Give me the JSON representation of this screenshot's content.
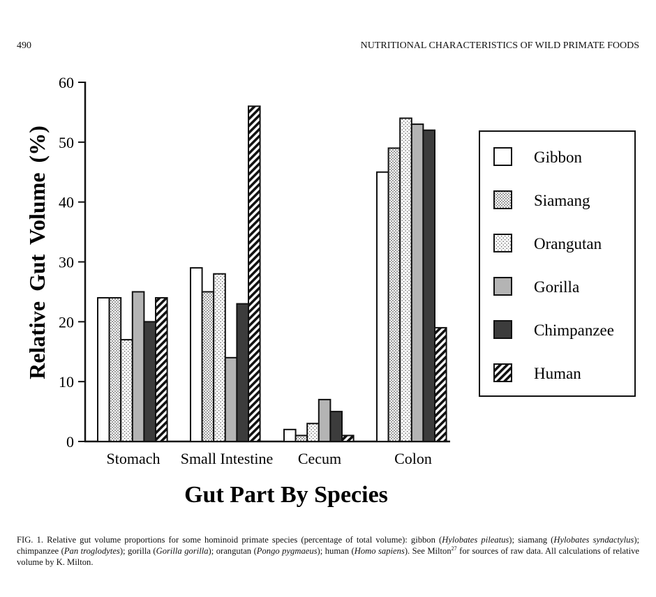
{
  "page": {
    "page_number": "490",
    "running_head": "NUTRITIONAL CHARACTERISTICS OF WILD PRIMATE FOODS"
  },
  "caption": {
    "parts": [
      {
        "text": "FIG. 1. Relative gut volume proportions for some hominoid primate species (percentage of total volume): gibbon (",
        "style": "normal"
      },
      {
        "text": "Hylobates pileatus",
        "style": "italic"
      },
      {
        "text": "); siamang (",
        "style": "normal"
      },
      {
        "text": "Hylobates syndactylus",
        "style": "italic"
      },
      {
        "text": "); chimpanzee (",
        "style": "normal"
      },
      {
        "text": "Pan troglodytes",
        "style": "italic"
      },
      {
        "text": "); gorilla (",
        "style": "normal"
      },
      {
        "text": "Gorilla gorilla",
        "style": "italic"
      },
      {
        "text": "); orangutan (",
        "style": "normal"
      },
      {
        "text": "Pongo pygmaeus",
        "style": "italic"
      },
      {
        "text": "); human (",
        "style": "normal"
      },
      {
        "text": "Homo sapiens",
        "style": "italic"
      },
      {
        "text": "). See Milton",
        "style": "normal"
      },
      {
        "text": "27",
        "style": "sup"
      },
      {
        "text": " for sources of raw data. All calculations of relative volume by K. Milton.",
        "style": "normal"
      }
    ]
  },
  "chart_data": {
    "type": "bar",
    "title": "",
    "xlabel": "Gut Part By Species",
    "ylabel": "Relative Gut Volume (%)",
    "ylim": [
      0,
      60
    ],
    "yticks": [
      0,
      10,
      20,
      30,
      40,
      50,
      60
    ],
    "grid": false,
    "legend_position": "right",
    "categories": [
      "Stomach",
      "Small Intestine",
      "Cecum",
      "Colon"
    ],
    "series": [
      {
        "name": "Gibbon",
        "pattern": "white",
        "values": [
          24,
          29,
          2,
          45
        ]
      },
      {
        "name": "Siamang",
        "pattern": "dense-dots",
        "values": [
          24,
          25,
          1,
          49
        ]
      },
      {
        "name": "Orangutan",
        "pattern": "sparse-dots",
        "values": [
          17,
          28,
          3,
          54
        ]
      },
      {
        "name": "Gorilla",
        "pattern": "light-gray",
        "values": [
          25,
          14,
          7,
          53
        ]
      },
      {
        "name": "Chimpanzee",
        "pattern": "dark-gray",
        "values": [
          20,
          23,
          5,
          52
        ]
      },
      {
        "name": "Human",
        "pattern": "hatch",
        "values": [
          24,
          56,
          1,
          19
        ]
      }
    ],
    "colors": {
      "light_gray": "#b4b4b4",
      "dark_gray": "#3c3c3c",
      "outline": "#111111"
    }
  }
}
